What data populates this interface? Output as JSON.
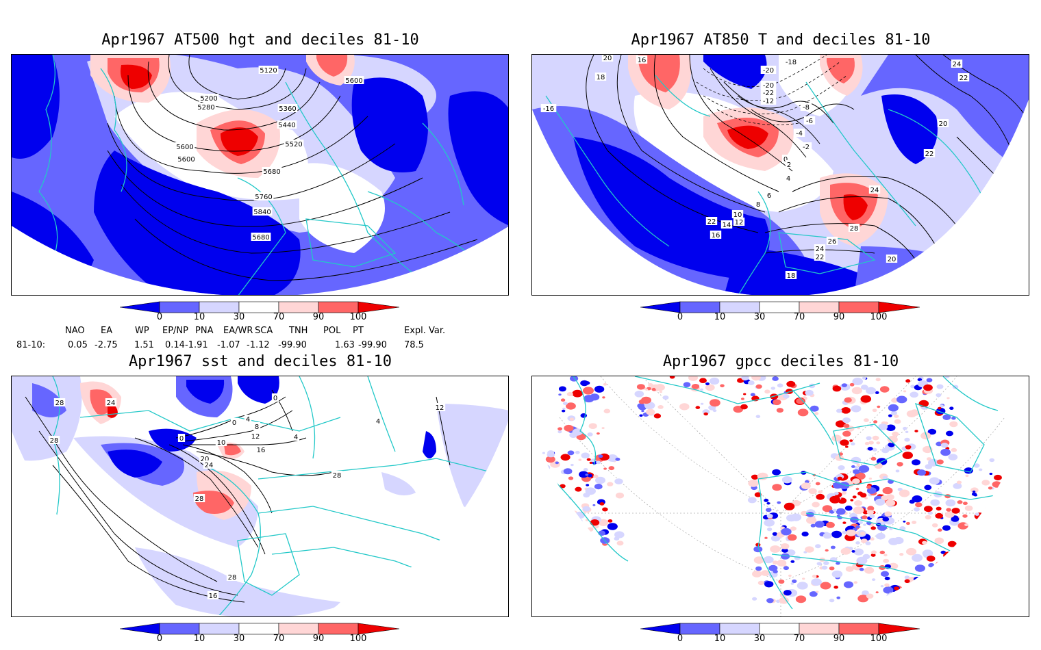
{
  "colors": {
    "deep_blue": "#0000ee",
    "mid_blue": "#6666ff",
    "light_blue": "#d6d6ff",
    "light_red": "#ffd6d6",
    "mid_red": "#ff6666",
    "deep_red": "#ee0000",
    "coast": "#22c8c8"
  },
  "panels": [
    {
      "id": "at500",
      "title": "Apr1967 AT500 hgt and deciles 81-10",
      "contour_labels": [
        "5120",
        "5200",
        "5280",
        "5360",
        "5440",
        "5520",
        "5600",
        "5680",
        "5760",
        "5840",
        "5600",
        "5600",
        "5680"
      ]
    },
    {
      "id": "at850",
      "title": "Apr1967 AT850 T and deciles 81-10",
      "contour_labels": [
        "20",
        "16",
        "18",
        "-16",
        "-20",
        "-18",
        "24",
        "22",
        "-20",
        "-22",
        "-12",
        "-8",
        "-6",
        "-4",
        "-2",
        "0",
        "2",
        "4",
        "6",
        "8",
        "10",
        "12",
        "14",
        "16",
        "22",
        "24",
        "28",
        "26",
        "24",
        "22",
        "20",
        "18",
        "20",
        "22"
      ]
    },
    {
      "id": "sst",
      "title": "Apr1967 sst and deciles 81-10",
      "contour_labels": [
        "28",
        "24",
        "28",
        "0",
        "10",
        "0",
        "4",
        "8",
        "12",
        "16",
        "20",
        "24",
        "28",
        "28",
        "16",
        "12",
        "28",
        "4",
        "4",
        "0"
      ]
    },
    {
      "id": "gpcc",
      "title": "Apr1967 gpcc deciles 81-10",
      "contour_labels": []
    }
  ],
  "colorbar": {
    "labels": [
      "0",
      "10",
      "30",
      "70",
      "90",
      "100"
    ]
  },
  "indices": {
    "row_label": "81-10:",
    "headers": [
      "NAO",
      "EA",
      "WP",
      "EP/NP",
      "PNA",
      "EA/WR",
      "SCA",
      "TNH",
      "POL",
      "PT",
      "Expl. Var."
    ],
    "values": [
      "0.05",
      "-2.75",
      "1.51",
      "0.14",
      "-1.91",
      "-1.07",
      "-1.12",
      "-99.90",
      "1.63",
      "-99.90",
      "78.5"
    ]
  }
}
